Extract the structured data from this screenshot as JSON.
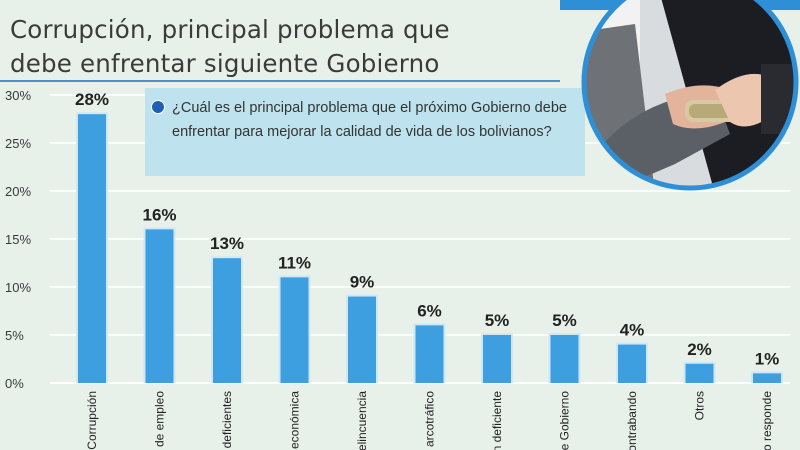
{
  "header": {
    "title_line1": "Corrupción, principal problema que",
    "title_line2": "debe enfrentar siguiente Gobierno"
  },
  "question": "¿Cuál es el principal problema que el próximo Gobierno debe enfrentar para mejorar la calidad de vida de los bolivianos?",
  "colors": {
    "bar": "#3d9fe0",
    "background": "#e7f1ea",
    "question_box": "#bfe3ee",
    "accent": "#2e8fd6"
  },
  "chart_data": {
    "type": "bar",
    "categories": [
      "Corrupción",
      "de empleo",
      "lud deficientes",
      "económica",
      "elincuencia",
      "arcotráfico",
      "on deficiente",
      "de Gobierno",
      "ontrabando",
      "Otros",
      "o responde"
    ],
    "values": [
      28,
      16,
      13,
      11,
      9,
      6,
      5,
      5,
      4,
      2,
      1
    ],
    "value_labels": [
      "28%",
      "16%",
      "13%",
      "11%",
      "9%",
      "6%",
      "5%",
      "5%",
      "4%",
      "2%",
      "1%"
    ],
    "yticks": [
      "0%",
      "5%",
      "10%",
      "15%",
      "20%",
      "25%",
      "30%"
    ],
    "ylim": [
      0,
      30
    ],
    "grid": true,
    "title": "Corrupción, principal problema que debe enfrentar siguiente Gobierno"
  }
}
